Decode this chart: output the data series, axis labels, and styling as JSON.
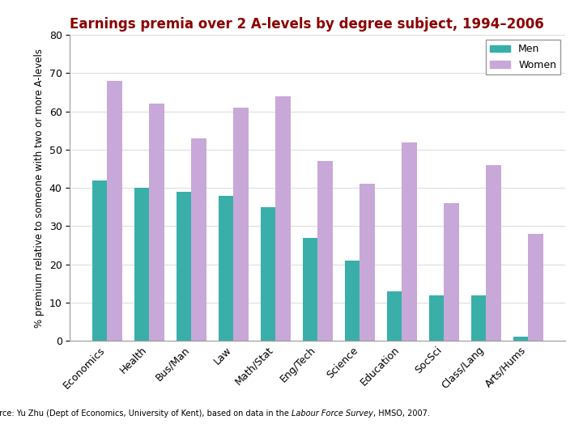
{
  "title": "Earnings premia over 2 A-levels by degree subject, 1994–2006",
  "ylabel": "% premium relative to someone with two or more A-levels",
  "categories": [
    "Economics",
    "Health",
    "Bus/Man",
    "Law",
    "Math/Stat",
    "Eng/Tech",
    "Science",
    "Education",
    "SocSci",
    "Class/Lang",
    "Arts/Hums"
  ],
  "men": [
    42,
    40,
    39,
    38,
    35,
    27,
    21,
    13,
    12,
    12,
    1
  ],
  "women": [
    68,
    62,
    53,
    61,
    64,
    47,
    41,
    52,
    36,
    46,
    28
  ],
  "men_color": "#3aafa9",
  "women_color": "#c8a8d8",
  "title_color": "#8b0000",
  "ylim": [
    0,
    80
  ],
  "yticks": [
    0,
    10,
    20,
    30,
    40,
    50,
    60,
    70,
    80
  ],
  "source_normal1": "Source: Yu Zhu (Dept of Economics, University of Kent), based on data in the ",
  "source_italic": "Labour Force Survey",
  "source_normal2": ", HMSO, 2007.",
  "bar_width": 0.35,
  "legend_labels": [
    "Men",
    "Women"
  ]
}
